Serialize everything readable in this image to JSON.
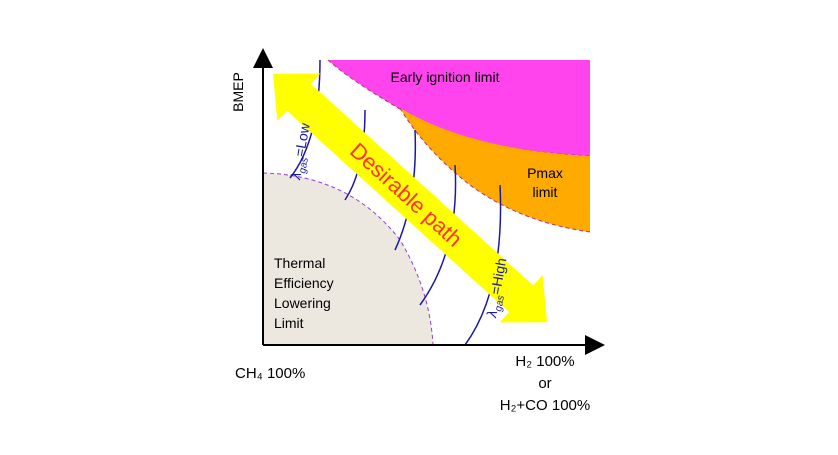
{
  "axes": {
    "y_label": "BMEP",
    "x_left": "CH₄ 100%",
    "x_right": [
      "H₂ 100%",
      "or",
      "H₂+CO 100%"
    ]
  },
  "regions": {
    "early_ignition": "Early ignition limit",
    "pmax": [
      "Pmax",
      "limit"
    ],
    "thermal": [
      "Thermal",
      "Efficiency",
      "Lowering",
      "Limit"
    ]
  },
  "path_label": "Desirable path",
  "lambda_low": {
    "symbol": "λ",
    "subscript": "gas",
    "text": "=Low"
  },
  "lambda_high": {
    "symbol": "λ",
    "subscript": "gas",
    "text": "=High"
  }
}
